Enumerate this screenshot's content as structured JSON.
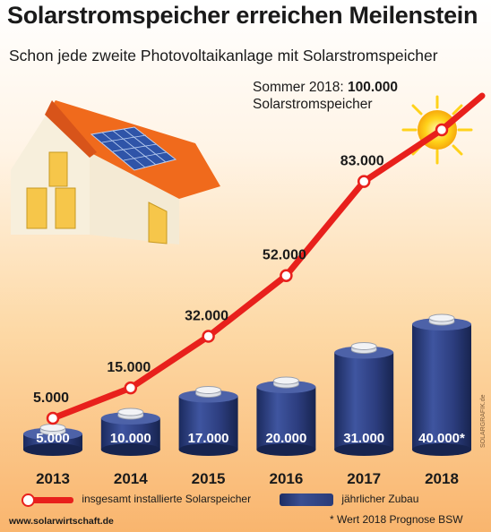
{
  "title": "Solarstromspeicher erreichen Meilenstein",
  "subtitle": "Schon jede zweite Photovoltaikanlage mit Solarstromspeicher",
  "annotation": {
    "line1_prefix": "Sommer 2018:",
    "line1_value": "100.000",
    "line2": "Solarstromspeicher"
  },
  "chart_data": {
    "type": "bar+line",
    "categories": [
      "2013",
      "2014",
      "2015",
      "2016",
      "2017",
      "2018"
    ],
    "series": [
      {
        "name": "insgesamt installierte Solarspeicher",
        "kind": "line",
        "color": "#e8201c",
        "values": [
          5000,
          15000,
          32000,
          52000,
          83000,
          100000
        ],
        "labels": [
          "5.000",
          "15.000",
          "32.000",
          "52.000",
          "83.000",
          ""
        ]
      },
      {
        "name": "jährlicher Zubau",
        "kind": "bar",
        "color": "#2a3b78",
        "values": [
          5000,
          10000,
          17000,
          20000,
          31000,
          40000
        ],
        "labels": [
          "5.000",
          "10.000",
          "17.000",
          "20.000",
          "31.000",
          "40.000*"
        ]
      }
    ],
    "legend_position": "bottom"
  },
  "legend": {
    "line_label": "insgesamt installierte Solarspeicher",
    "bar_label": "jährlicher Zubau"
  },
  "footnote": "* Wert 2018 Prognose BSW",
  "source_url": "www.solarwirtschaft.de",
  "credit": "SOLARGRAFIK.de",
  "colors": {
    "line": "#e8201c",
    "bar": "#2a3b78",
    "roof": "#f06a1c",
    "sun": "#ffd21a"
  }
}
